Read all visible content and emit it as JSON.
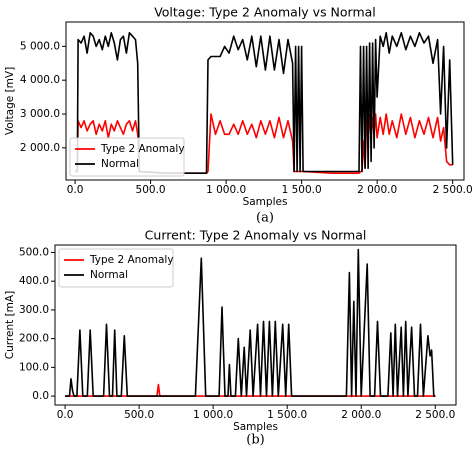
{
  "chart_data": [
    {
      "type": "line",
      "title": "Voltage: Type 2 Anomaly vs Normal",
      "xlabel": "Samples",
      "ylabel": "Voltage [mV]",
      "caption": "(a)",
      "legend": "lower left",
      "x": [
        0,
        15,
        20,
        40,
        60,
        80,
        100,
        120,
        140,
        160,
        180,
        200,
        220,
        240,
        260,
        280,
        300,
        320,
        340,
        360,
        380,
        400,
        415,
        425,
        600,
        800,
        870,
        880,
        900,
        930,
        960,
        990,
        1020,
        1050,
        1080,
        1110,
        1140,
        1170,
        1200,
        1230,
        1260,
        1290,
        1320,
        1350,
        1380,
        1410,
        1440,
        1450,
        1460,
        1470,
        1480,
        1490,
        1500,
        1510,
        1700,
        1880,
        1890,
        1900,
        1910,
        1920,
        1930,
        1940,
        1950,
        1960,
        1970,
        1980,
        1990,
        2000,
        2020,
        2040,
        2060,
        2080,
        2100,
        2130,
        2160,
        2190,
        2220,
        2250,
        2280,
        2310,
        2340,
        2370,
        2400,
        2420,
        2440,
        2460,
        2480,
        2500
      ],
      "series": [
        {
          "name": "Type 2 Anomaly",
          "color": "#ff0000",
          "values": [
            1300,
            1300,
            2800,
            2600,
            2800,
            2500,
            2700,
            2800,
            2400,
            2700,
            2500,
            2800,
            2300,
            2700,
            2500,
            2800,
            2600,
            2400,
            2700,
            2800,
            2500,
            2800,
            2400,
            1300,
            1250,
            1250,
            1250,
            1300,
            3000,
            2400,
            2800,
            2400,
            2400,
            2700,
            2400,
            2800,
            2400,
            2700,
            2300,
            2800,
            2400,
            2800,
            2300,
            2900,
            2300,
            2800,
            2200,
            1300,
            1300,
            1300,
            1300,
            1300,
            1300,
            1300,
            1250,
            1250,
            1300,
            1300,
            2200,
            1400,
            2900,
            2200,
            3000,
            2300,
            2900,
            2400,
            3000,
            2300,
            2900,
            2400,
            3000,
            2400,
            2800,
            2300,
            3000,
            2400,
            2900,
            2300,
            2800,
            2400,
            2900,
            2300,
            2900,
            2200,
            2600,
            1600,
            1500,
            1500
          ]
        },
        {
          "name": "Normal",
          "color": "#000000",
          "values": [
            1300,
            1300,
            5200,
            5100,
            5300,
            4800,
            5400,
            5300,
            5000,
            5200,
            4900,
            5300,
            5000,
            5400,
            5100,
            4600,
            5200,
            5300,
            4800,
            5400,
            5300,
            5200,
            4500,
            1300,
            1250,
            1250,
            1250,
            4600,
            4700,
            4700,
            4700,
            5000,
            4800,
            5300,
            4900,
            5200,
            4600,
            5300,
            4400,
            5300,
            4300,
            5300,
            4300,
            5200,
            4200,
            5200,
            4500,
            1300,
            5000,
            1300,
            5000,
            1300,
            5000,
            1300,
            1300,
            1300,
            5000,
            1300,
            5000,
            1400,
            5000,
            1400,
            5100,
            1600,
            5100,
            2000,
            5200,
            3500,
            5300,
            5000,
            5400,
            4800,
            5300,
            5000,
            5400,
            4900,
            5300,
            5000,
            5400,
            5100,
            5300,
            4500,
            5200,
            3000,
            5000,
            2000,
            4600,
            1500
          ]
        }
      ],
      "xlim": [
        -60,
        2575
      ],
      "ylim": [
        1050,
        5720
      ],
      "xticks": [
        {
          "value": 0,
          "label": "0.0"
        },
        {
          "value": 500,
          "label": "500.0"
        },
        {
          "value": 1000,
          "label": "1 000.0"
        },
        {
          "value": 1500,
          "label": "1 500.0"
        },
        {
          "value": 2000,
          "label": "2 000.0"
        },
        {
          "value": 2500,
          "label": "2 500.0"
        }
      ],
      "yticks": [
        {
          "value": 2000,
          "label": "2 000.0"
        },
        {
          "value": 3000,
          "label": "3 000.0"
        },
        {
          "value": 4000,
          "label": "4 000.0"
        },
        {
          "value": 5000,
          "label": "5 000.0"
        }
      ]
    },
    {
      "type": "line",
      "title": "Current: Type 2 Anomaly vs Normal",
      "xlabel": "Samples",
      "ylabel": "Current [mA]",
      "caption": "(b)",
      "legend": "upper left",
      "x": [
        0,
        30,
        40,
        50,
        60,
        80,
        100,
        120,
        150,
        170,
        190,
        260,
        280,
        300,
        320,
        335,
        350,
        380,
        400,
        420,
        620,
        630,
        640,
        880,
        920,
        950,
        1040,
        1060,
        1080,
        1100,
        1110,
        1120,
        1150,
        1170,
        1190,
        1210,
        1225,
        1250,
        1270,
        1300,
        1320,
        1340,
        1360,
        1380,
        1400,
        1420,
        1440,
        1470,
        1490,
        1510,
        1530,
        1900,
        1920,
        1935,
        1950,
        1965,
        1980,
        2000,
        2040,
        2060,
        2090,
        2110,
        2130,
        2180,
        2200,
        2215,
        2230,
        2245,
        2270,
        2285,
        2300,
        2315,
        2340,
        2360,
        2380,
        2400,
        2420,
        2450,
        2465,
        2475,
        2490,
        2500
      ],
      "series": [
        {
          "name": "Type 2 Anomaly",
          "color": "#ff0000",
          "values": [
            0,
            0,
            0,
            0,
            0,
            0,
            0,
            0,
            0,
            0,
            0,
            0,
            0,
            0,
            0,
            0,
            0,
            0,
            0,
            0,
            0,
            40,
            0,
            0,
            0,
            0,
            0,
            0,
            0,
            0,
            0,
            0,
            0,
            0,
            0,
            0,
            0,
            0,
            0,
            0,
            0,
            0,
            0,
            0,
            0,
            0,
            0,
            0,
            0,
            0,
            0,
            0,
            0,
            0,
            0,
            0,
            0,
            0,
            0,
            0,
            0,
            0,
            0,
            0,
            0,
            0,
            0,
            0,
            0,
            0,
            0,
            0,
            0,
            0,
            0,
            0,
            0,
            0,
            0,
            0,
            0,
            0
          ]
        },
        {
          "name": "Normal",
          "color": "#000000",
          "values": [
            0,
            0,
            60,
            20,
            0,
            0,
            230,
            0,
            0,
            230,
            0,
            0,
            250,
            0,
            0,
            230,
            0,
            0,
            210,
            0,
            0,
            0,
            0,
            0,
            480,
            0,
            0,
            310,
            0,
            0,
            110,
            0,
            0,
            200,
            0,
            170,
            0,
            230,
            0,
            250,
            0,
            260,
            0,
            260,
            0,
            260,
            0,
            250,
            0,
            250,
            0,
            0,
            430,
            0,
            330,
            0,
            510,
            0,
            460,
            0,
            0,
            260,
            0,
            0,
            220,
            0,
            250,
            0,
            240,
            0,
            260,
            0,
            240,
            0,
            0,
            250,
            0,
            210,
            140,
            160,
            0,
            0
          ]
        }
      ],
      "xlim": [
        -68,
        2640
      ],
      "ylim": [
        -31,
        526
      ],
      "xticks": [
        {
          "value": 0,
          "label": "0.0"
        },
        {
          "value": 500,
          "label": "500.0"
        },
        {
          "value": 1000,
          "label": "1 000.0"
        },
        {
          "value": 1500,
          "label": "1 500.0"
        },
        {
          "value": 2000,
          "label": "2 000.0"
        },
        {
          "value": 2500,
          "label": "2 500.0"
        }
      ],
      "yticks": [
        {
          "value": 0,
          "label": "0.0"
        },
        {
          "value": 100,
          "label": "100.0"
        },
        {
          "value": 200,
          "label": "200.0"
        },
        {
          "value": 300,
          "label": "300.0"
        },
        {
          "value": 400,
          "label": "400.0"
        },
        {
          "value": 500,
          "label": "500.0"
        }
      ]
    }
  ]
}
